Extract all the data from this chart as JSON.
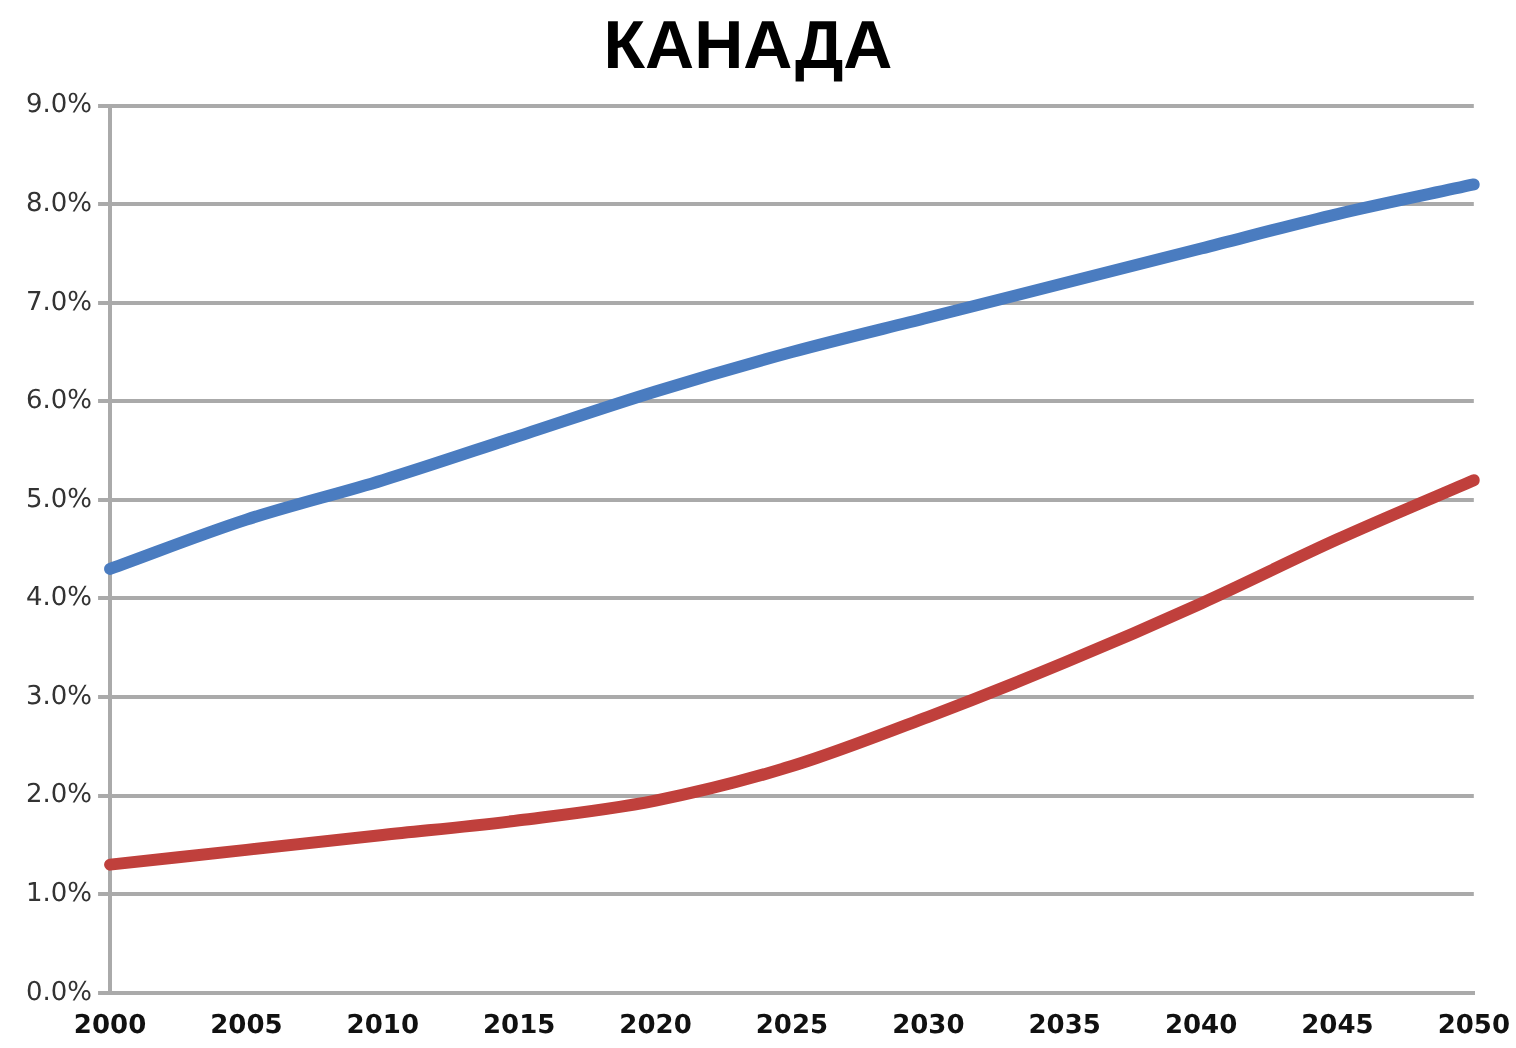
{
  "chart_data": {
    "type": "line",
    "title": "КАНАДА",
    "categories": [
      "2000",
      "2005",
      "2010",
      "2015",
      "2020",
      "2025",
      "2030",
      "2035",
      "2040",
      "2045",
      "2050"
    ],
    "series": [
      {
        "color": "#4a7cc0",
        "values": [
          4.3,
          4.8,
          5.2,
          5.65,
          6.1,
          6.5,
          6.85,
          7.2,
          7.55,
          7.9,
          8.2
        ]
      },
      {
        "color": "#c0403c",
        "values": [
          1.3,
          1.45,
          1.6,
          1.75,
          1.95,
          2.3,
          2.8,
          3.35,
          3.95,
          4.6,
          5.2
        ]
      }
    ],
    "ylim": [
      0,
      9
    ],
    "yticks": [
      {
        "value": 0,
        "label": "0.0%"
      },
      {
        "value": 1,
        "label": "1.0%"
      },
      {
        "value": 2,
        "label": "2.0%"
      },
      {
        "value": 3,
        "label": "3.0%"
      },
      {
        "value": 4,
        "label": "4.0%"
      },
      {
        "value": 5,
        "label": "5.0%"
      },
      {
        "value": 6,
        "label": "6.0%"
      },
      {
        "value": 7,
        "label": "7.0%"
      },
      {
        "value": 8,
        "label": "8.0%"
      },
      {
        "value": 9,
        "label": "9.0%"
      }
    ],
    "grid": "y",
    "legend": false,
    "marker": "none",
    "line_style": "solid"
  }
}
